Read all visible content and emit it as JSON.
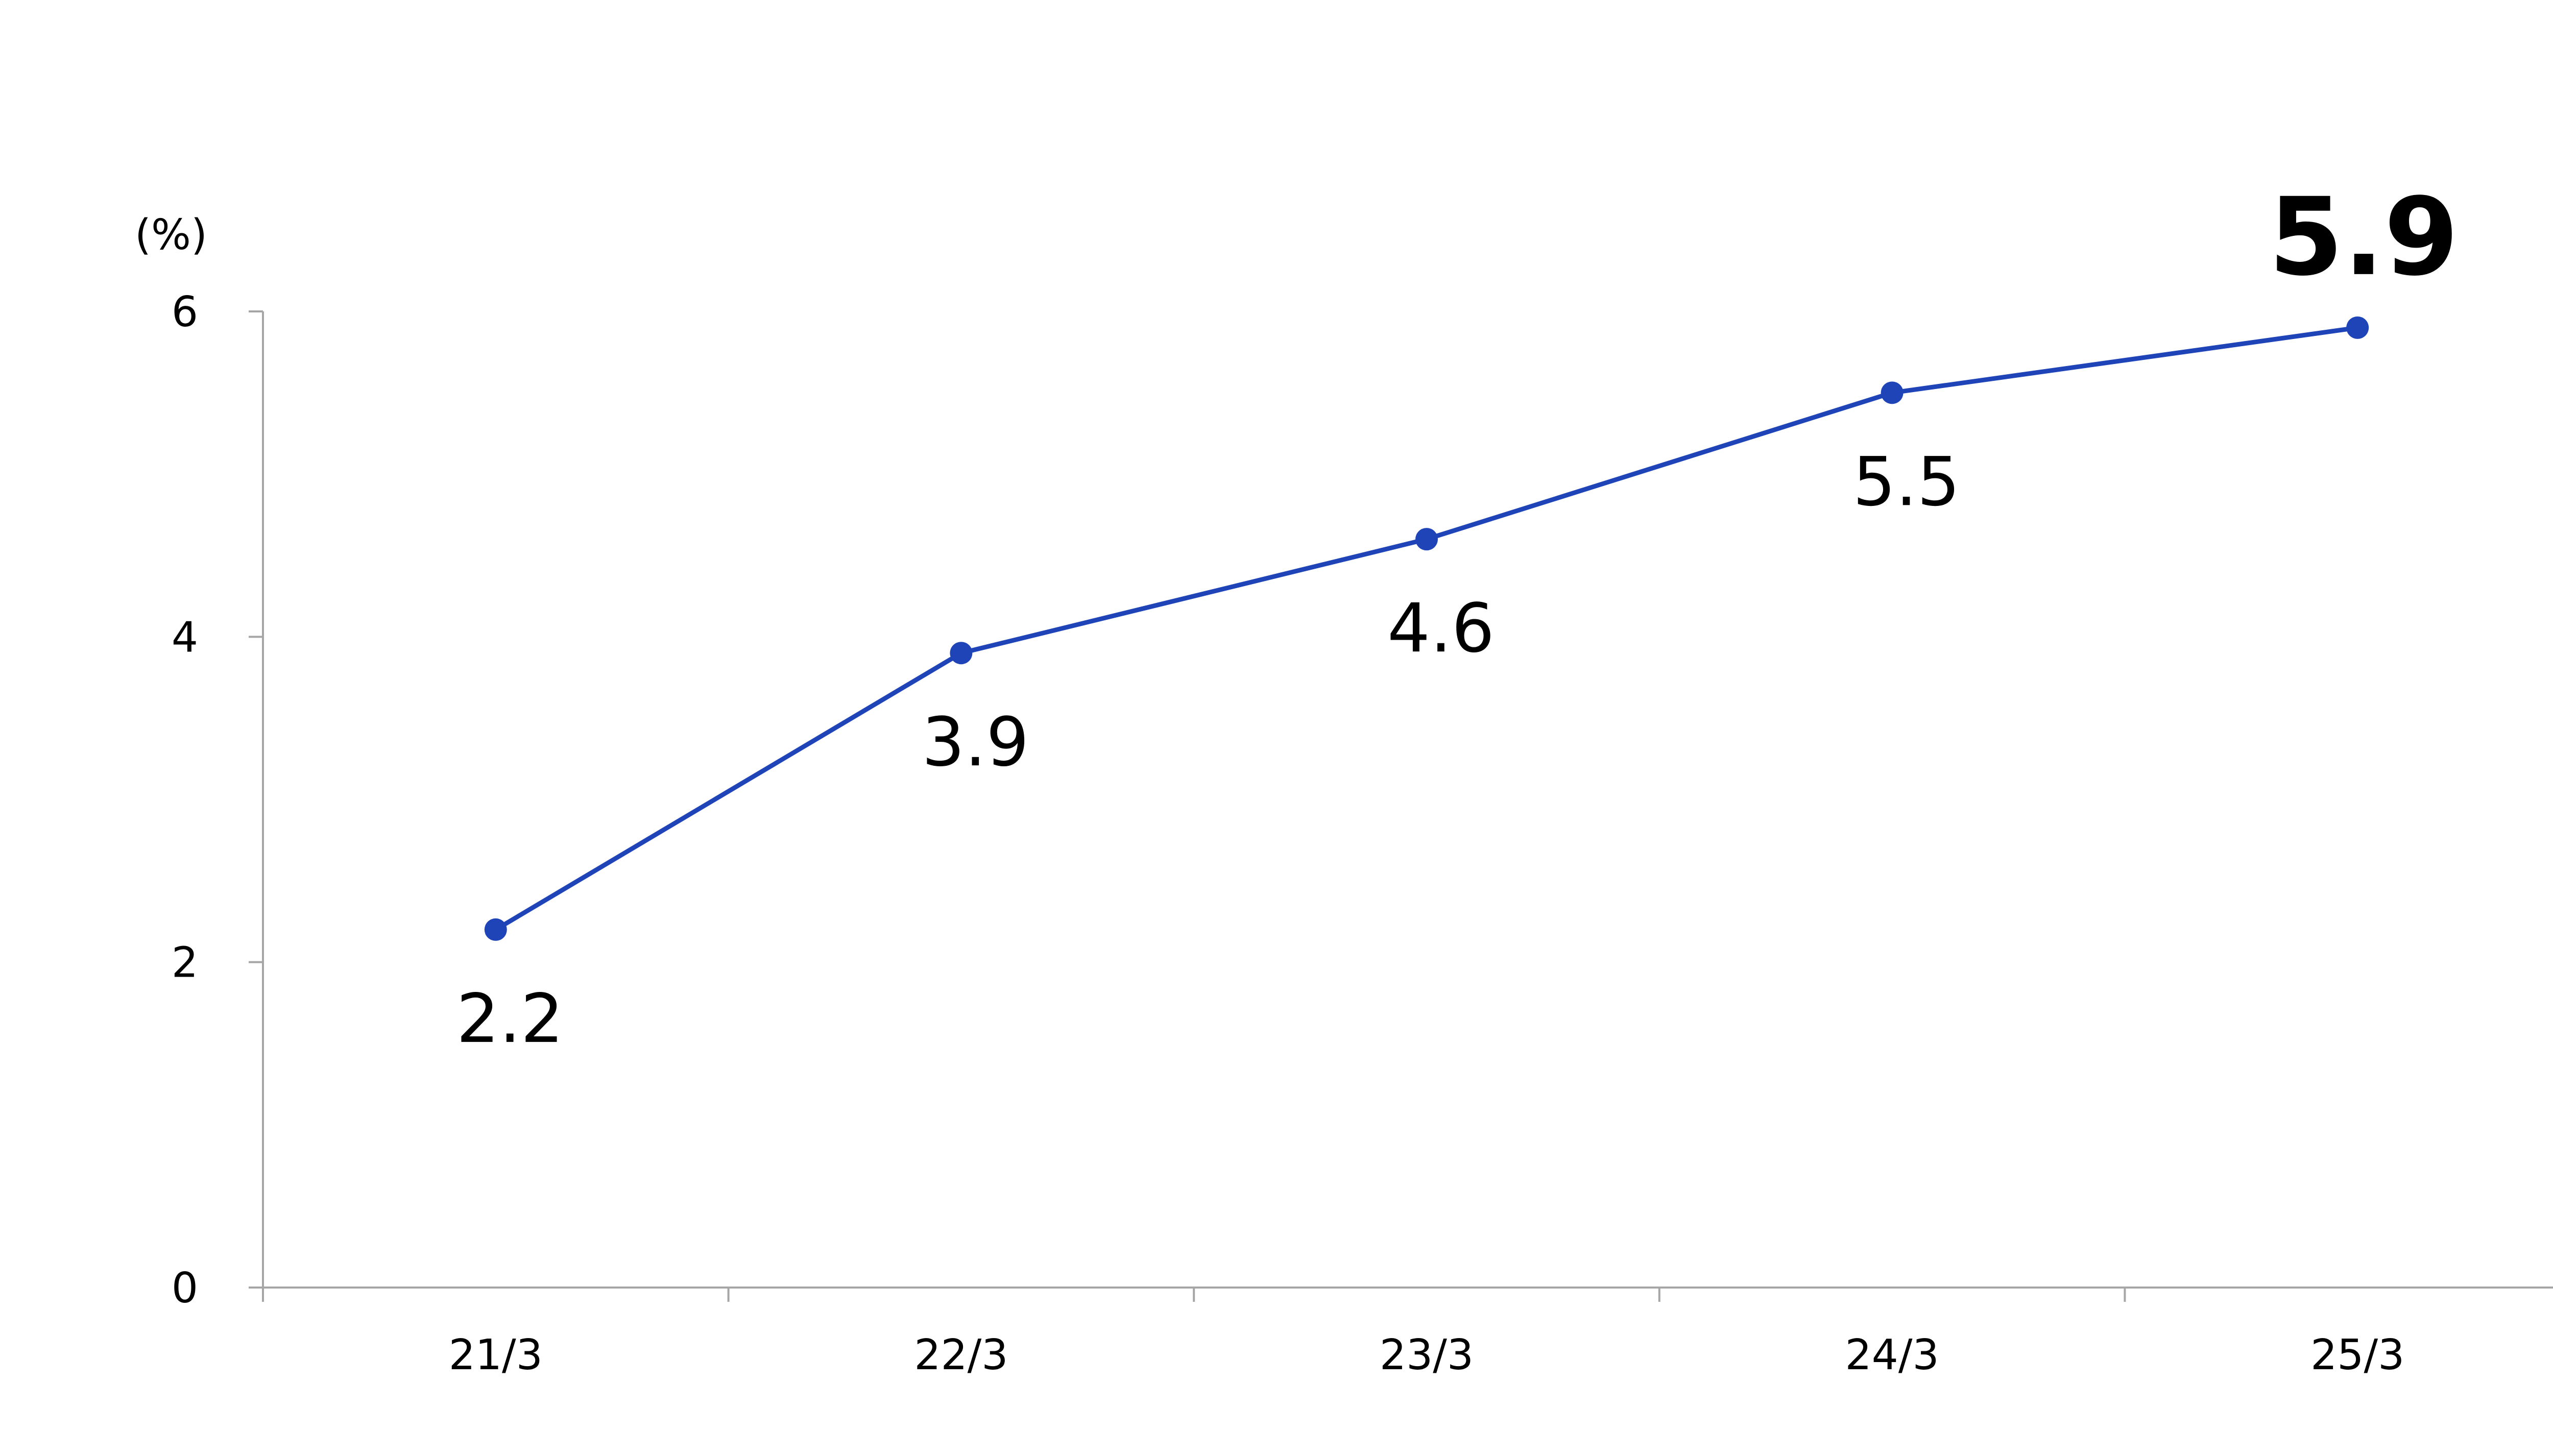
{
  "chart_data": {
    "type": "line",
    "title": "",
    "xlabel": "",
    "ylabel": "(%)",
    "categories": [
      "21/3",
      "22/3",
      "23/3",
      "24/3",
      "25/3"
    ],
    "series": [
      {
        "values": [
          2.2,
          3.9,
          4.6,
          5.5,
          5.9
        ],
        "labels": [
          "2.2",
          "3.9",
          "4.6",
          "5.5",
          "5.9"
        ],
        "emphasized_index": 4,
        "color": "#1f44b8"
      }
    ],
    "ylim": [
      0,
      6
    ],
    "yticks": [
      0,
      2,
      4,
      6
    ],
    "grid": false,
    "legend": "none"
  }
}
